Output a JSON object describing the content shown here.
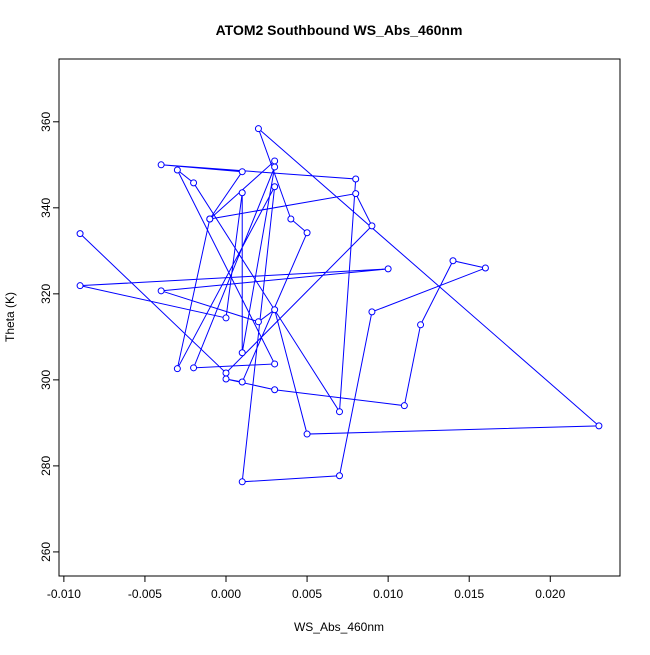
{
  "chart_data": {
    "type": "line",
    "title": "ATOM2 Southbound WS_Abs_460nm",
    "x_label": "WS_Abs_460nm",
    "y_label": "Theta (K)",
    "x": [
      -0.009,
      0.0,
      0.009,
      0.008,
      -0.001,
      0.001,
      -0.004,
      0.008,
      0.007,
      -0.002,
      -0.003,
      0.003,
      -0.002,
      0.003,
      0.001,
      0.001,
      0.0,
      -0.009,
      0.01,
      -0.004,
      0.002,
      0.003,
      0.005,
      0.023,
      0.002,
      0.004,
      0.005,
      0.001,
      0.0,
      0.003,
      0.011,
      0.012,
      0.014,
      0.016,
      0.009,
      0.007,
      0.001,
      0.003,
      -0.003,
      -0.001,
      0.003
    ],
    "series": [
      {
        "name": "Theta",
        "color": "#0000ff",
        "values": [
          334.0,
          301.6,
          335.8,
          343.3,
          337.4,
          348.4,
          350.0,
          346.7,
          292.6,
          345.8,
          348.8,
          303.7,
          302.8,
          349.5,
          306.3,
          343.5,
          314.4,
          321.9,
          325.8,
          320.7,
          313.5,
          316.3,
          287.4,
          289.3,
          358.4,
          337.4,
          334.2,
          299.5,
          300.2,
          297.7,
          294.0,
          312.8,
          327.7,
          326.0,
          315.8,
          277.7,
          276.3,
          344.9,
          302.6,
          337.4,
          350.9
        ]
      }
    ],
    "xlim": [
      -0.0103,
      0.0243
    ],
    "ylim": [
      254.4,
      374.6
    ],
    "xticks": [
      {
        "value": -0.01,
        "label": "-0.010"
      },
      {
        "value": -0.005,
        "label": "-0.005"
      },
      {
        "value": 0,
        "label": "0.000"
      },
      {
        "value": 0.005,
        "label": "0.005"
      },
      {
        "value": 0.01,
        "label": "0.010"
      },
      {
        "value": 0.015,
        "label": "0.015"
      },
      {
        "value": 0.02,
        "label": "0.020"
      }
    ],
    "yticks": [
      260,
      280,
      300,
      320,
      340,
      360
    ],
    "grid": false
  }
}
